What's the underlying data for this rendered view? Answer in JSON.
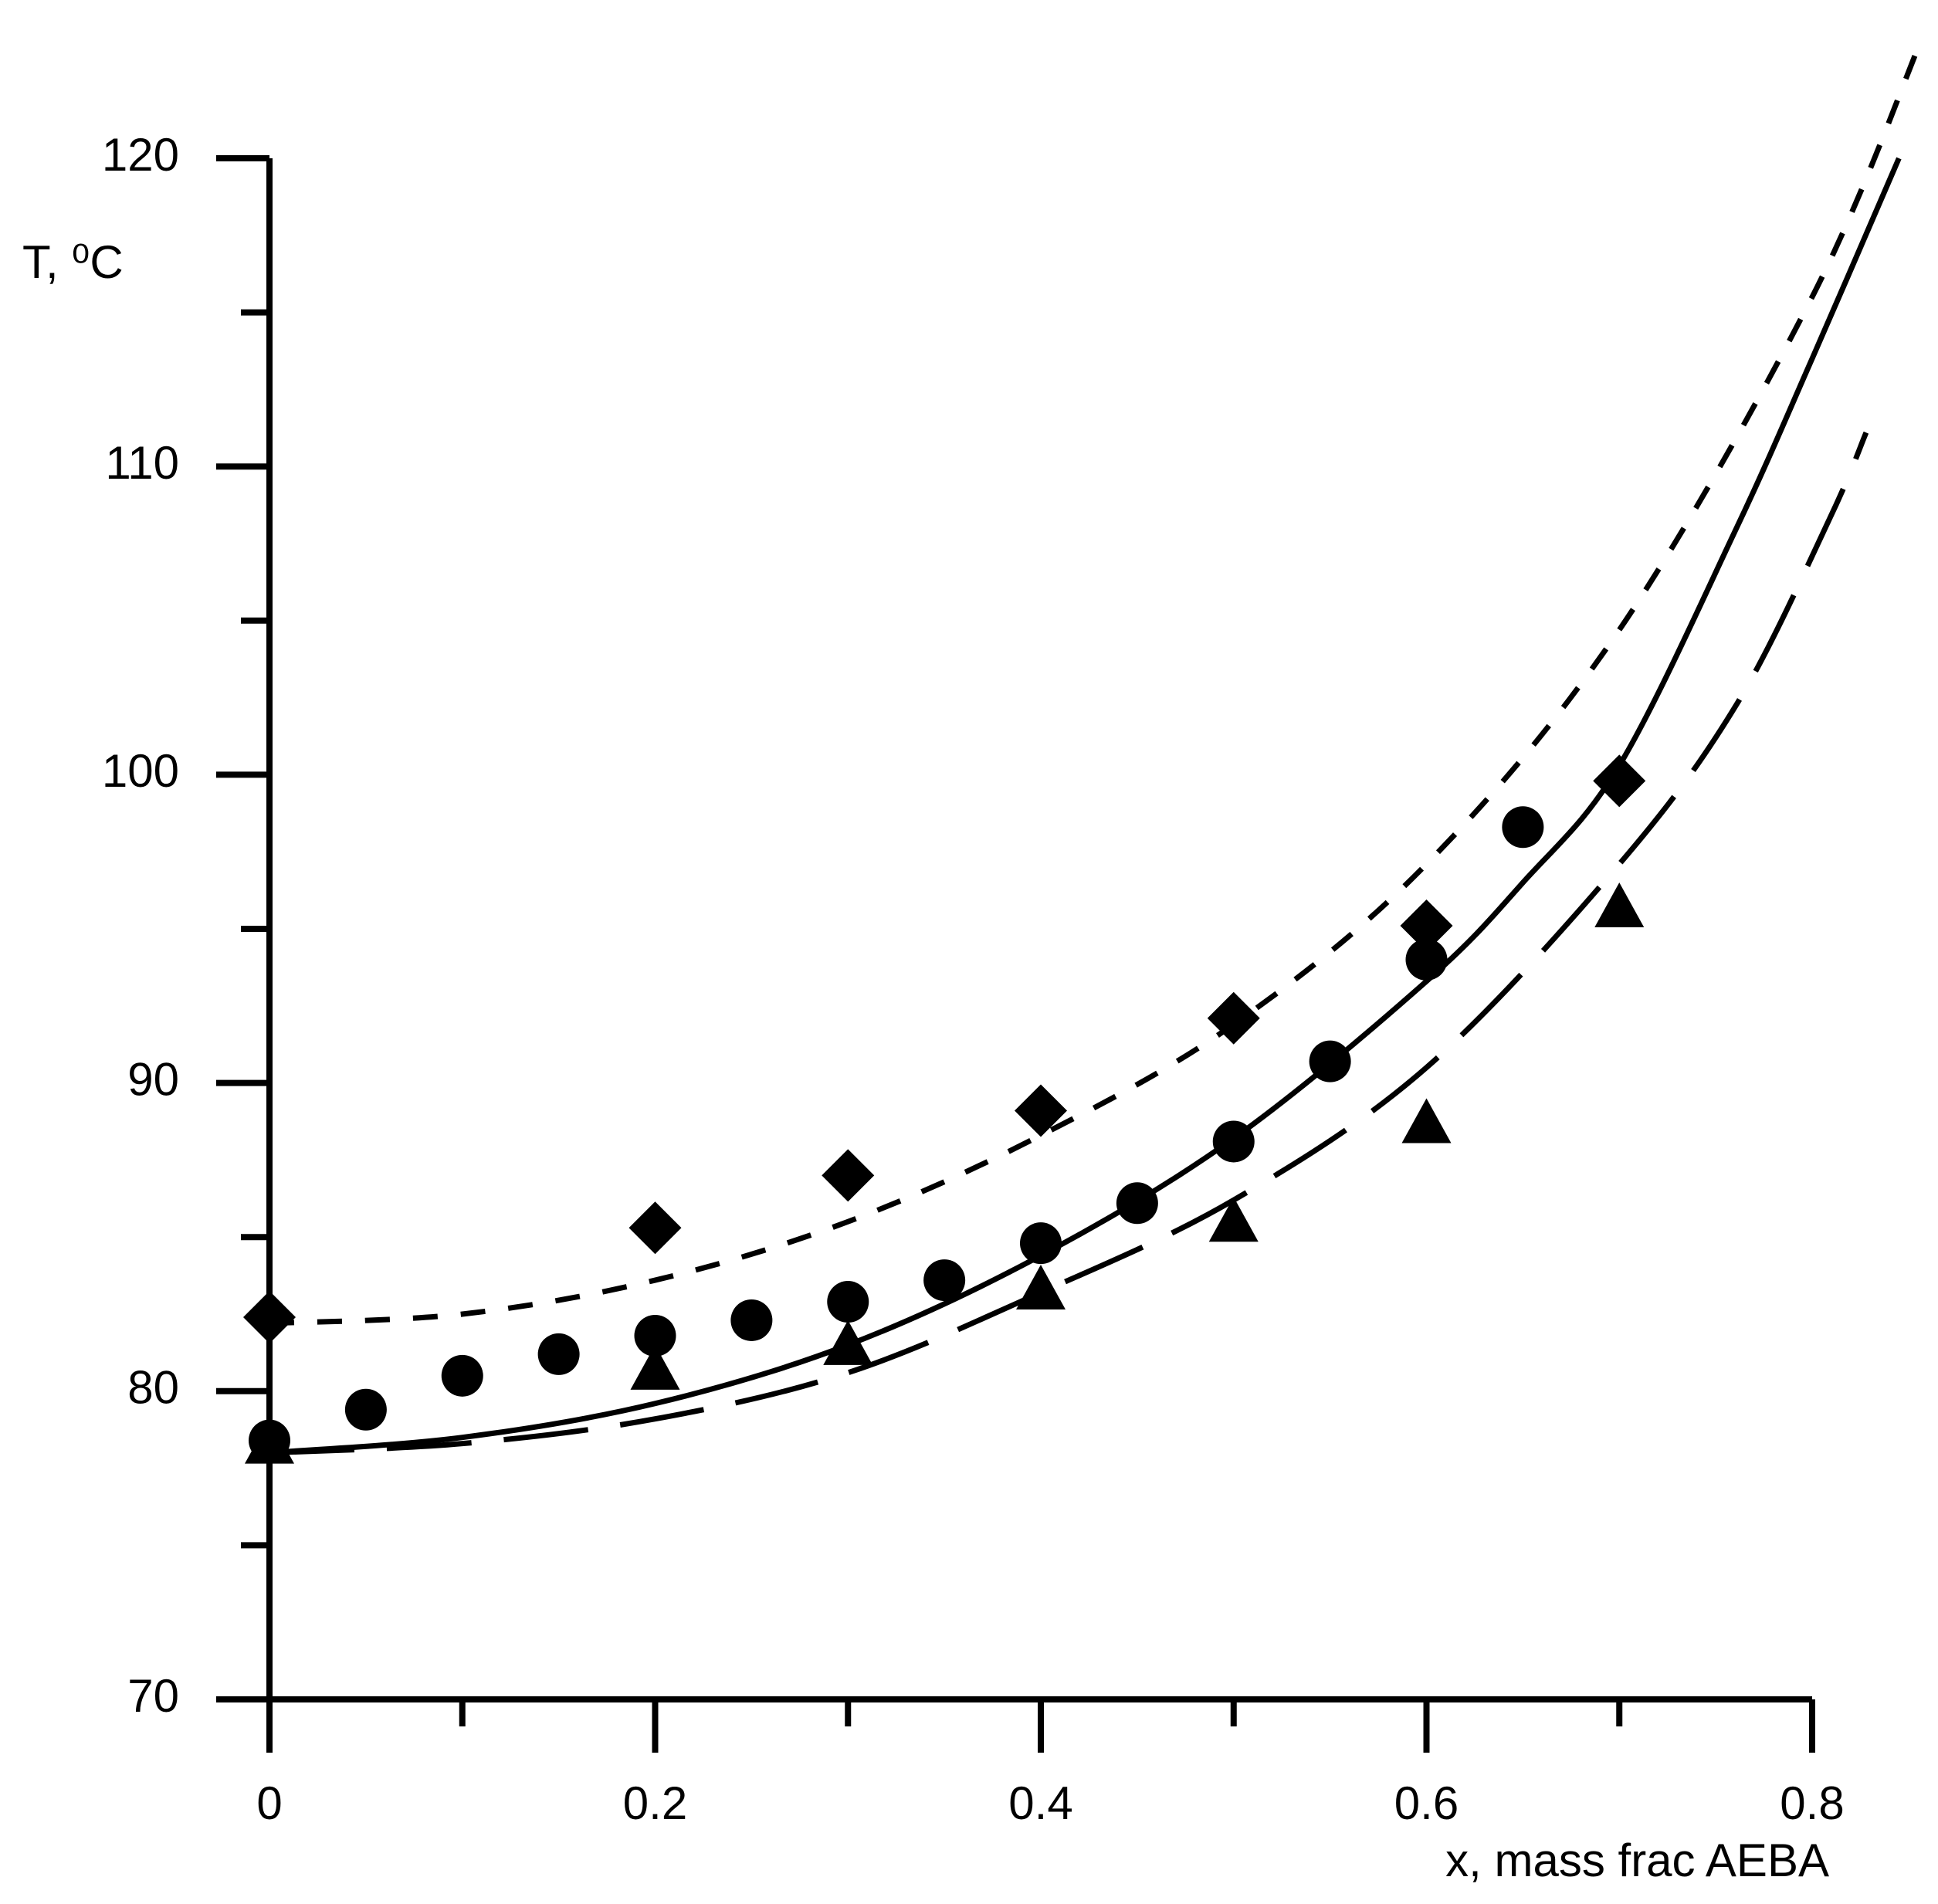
{
  "chart_data": {
    "type": "scatter",
    "xlabel": "x, mass frac AEBA",
    "ylabel": "T, ⁰C",
    "xlim": [
      0,
      0.8
    ],
    "ylim": [
      70,
      120
    ],
    "xticks": [
      0,
      0.2,
      0.4,
      0.6,
      0.8
    ],
    "x_minor_ticks": [
      0.1,
      0.3,
      0.5,
      0.7
    ],
    "yticks": [
      70,
      80,
      90,
      100,
      110,
      120
    ],
    "y_minor_ticks": [
      75,
      85,
      95,
      105,
      115
    ],
    "series": [
      {
        "mode": "markers",
        "marker": "circle",
        "color": "#000000",
        "x": [
          0,
          0.05,
          0.1,
          0.15,
          0.2,
          0.25,
          0.3,
          0.35,
          0.4,
          0.45,
          0.5,
          0.55,
          0.6,
          0.65
        ],
        "values": [
          78.4,
          79.4,
          80.5,
          81.2,
          81.8,
          82.3,
          82.9,
          83.6,
          84.8,
          86.1,
          88.1,
          90.7,
          94.0,
          98.3
        ]
      },
      {
        "mode": "markers",
        "marker": "diamond",
        "color": "#000000",
        "x": [
          0,
          0.2,
          0.3,
          0.4,
          0.5,
          0.6,
          0.7
        ],
        "values": [
          82.4,
          85.3,
          87.0,
          89.1,
          92.1,
          95.1,
          99.8
        ]
      },
      {
        "mode": "markers",
        "marker": "triangle",
        "color": "#000000",
        "x": [
          0,
          0.2,
          0.3,
          0.4,
          0.5,
          0.6,
          0.7
        ],
        "values": [
          78.2,
          80.6,
          81.4,
          83.2,
          85.4,
          88.6,
          95.6
        ]
      },
      {
        "mode": "lines",
        "dash": "solid",
        "color": "#000000",
        "x": [
          0,
          0.1,
          0.2,
          0.3,
          0.4,
          0.5,
          0.6,
          0.65,
          0.7,
          0.76,
          0.8,
          0.845
        ],
        "values": [
          78.0,
          78.5,
          79.6,
          81.5,
          84.4,
          88.2,
          93.3,
          96.5,
          100.3,
          107.9,
          113.5,
          120
        ]
      },
      {
        "mode": "lines",
        "dash": "dotted",
        "color": "#000000",
        "x": [
          0,
          0.1,
          0.2,
          0.3,
          0.4,
          0.5,
          0.6,
          0.7,
          0.8,
          0.857
        ],
        "values": [
          82.2,
          82.5,
          83.6,
          85.5,
          88.3,
          91.9,
          97.1,
          104.7,
          115.5,
          123.9
        ]
      },
      {
        "mode": "lines",
        "dash": "dashed",
        "color": "#000000",
        "x": [
          0,
          0.1,
          0.2,
          0.3,
          0.4,
          0.5,
          0.6,
          0.7,
          0.761,
          0.809,
          0.828
        ],
        "values": [
          78.0,
          78.3,
          79.1,
          80.6,
          83.2,
          86.2,
          90.5,
          97.1,
          102.3,
          108.3,
          111.1
        ]
      }
    ]
  }
}
